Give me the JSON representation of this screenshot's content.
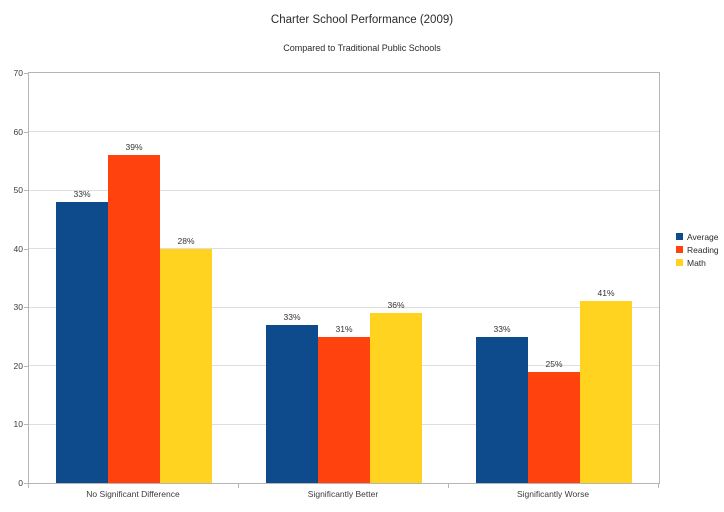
{
  "title": "Charter School Performance (2009)",
  "subtitle": "Compared to Traditional Public Schools",
  "legend": {
    "items": [
      {
        "label": "Average",
        "color": "#0e4b8c"
      },
      {
        "label": "Reading",
        "color": "#ff420e"
      },
      {
        "label": "Math",
        "color": "#ffd320"
      }
    ]
  },
  "chart_data": {
    "type": "bar",
    "title": "Charter School Performance (2009)",
    "subtitle": "Compared to Traditional Public Schools",
    "categories": [
      "No Significant Difference",
      "Significantly Better",
      "Significantly Worse"
    ],
    "series": [
      {
        "name": "Average",
        "color": "#0e4b8c",
        "values": [
          48,
          27,
          25
        ],
        "bar_labels": [
          "33%",
          "33%",
          "33%"
        ]
      },
      {
        "name": "Reading",
        "color": "#ff420e",
        "values": [
          56,
          25,
          19
        ],
        "bar_labels": [
          "39%",
          "31%",
          "25%"
        ]
      },
      {
        "name": "Math",
        "color": "#ffd320",
        "values": [
          40,
          29,
          31
        ],
        "bar_labels": [
          "28%",
          "36%",
          "41%"
        ]
      }
    ],
    "xlabel": "",
    "ylabel": "",
    "ylim": [
      0,
      70
    ],
    "yticks": [
      0,
      10,
      20,
      30,
      40,
      50,
      60,
      70
    ],
    "grid": true,
    "gridline_color": "#dedede",
    "axis_color": "#b5b5b5",
    "legend_position": "right"
  }
}
